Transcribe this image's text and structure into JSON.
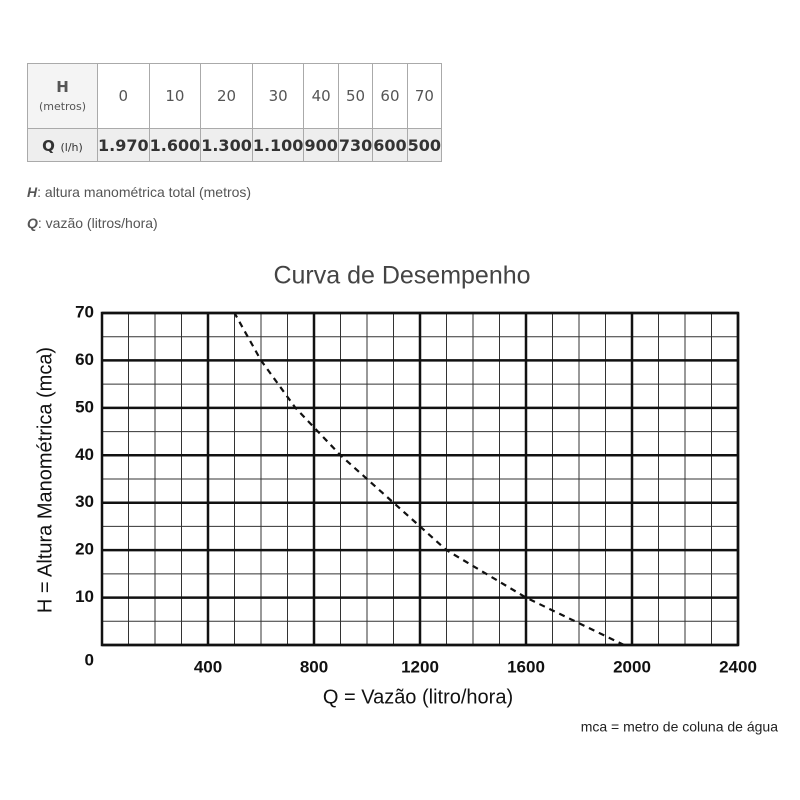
{
  "table": {
    "header": {
      "label": "H",
      "sublabel": "(metros)",
      "cells": [
        "0",
        "10",
        "20",
        "30",
        "40",
        "50",
        "60",
        "70"
      ]
    },
    "row": {
      "label": "Q",
      "sublabel": "(l/h)",
      "cells": [
        "1.970",
        "1.600",
        "1.300",
        "1.100",
        "900",
        "730",
        "600",
        "500"
      ]
    }
  },
  "notes": [
    {
      "symbol": "H",
      "text": ": altura manométrica total (metros)"
    },
    {
      "symbol": "Q",
      "text": ": vazão (litros/hora)"
    }
  ],
  "chart_data": {
    "type": "line",
    "title": "Curva de Desempenho",
    "x_label": "Q = Vazão (litro/hora)",
    "y_label": "H = Altura Manométrica (mca)",
    "note": "mca = metro de coluna de água",
    "x": [
      1970,
      1600,
      1300,
      1100,
      900,
      730,
      600,
      500
    ],
    "series": [
      {
        "values": [
          0,
          10,
          20,
          30,
          40,
          50,
          60,
          70
        ],
        "color": "#111111",
        "dashed": true
      }
    ],
    "xlim": [
      0,
      2400
    ],
    "ylim": [
      0,
      70
    ],
    "xticks": [
      400,
      800,
      1200,
      1600,
      2000,
      2400
    ],
    "yticks": [
      0,
      10,
      20,
      30,
      40,
      50,
      60,
      70
    ],
    "grid": true,
    "minor_grid": {
      "x": 100,
      "y": 5
    }
  }
}
